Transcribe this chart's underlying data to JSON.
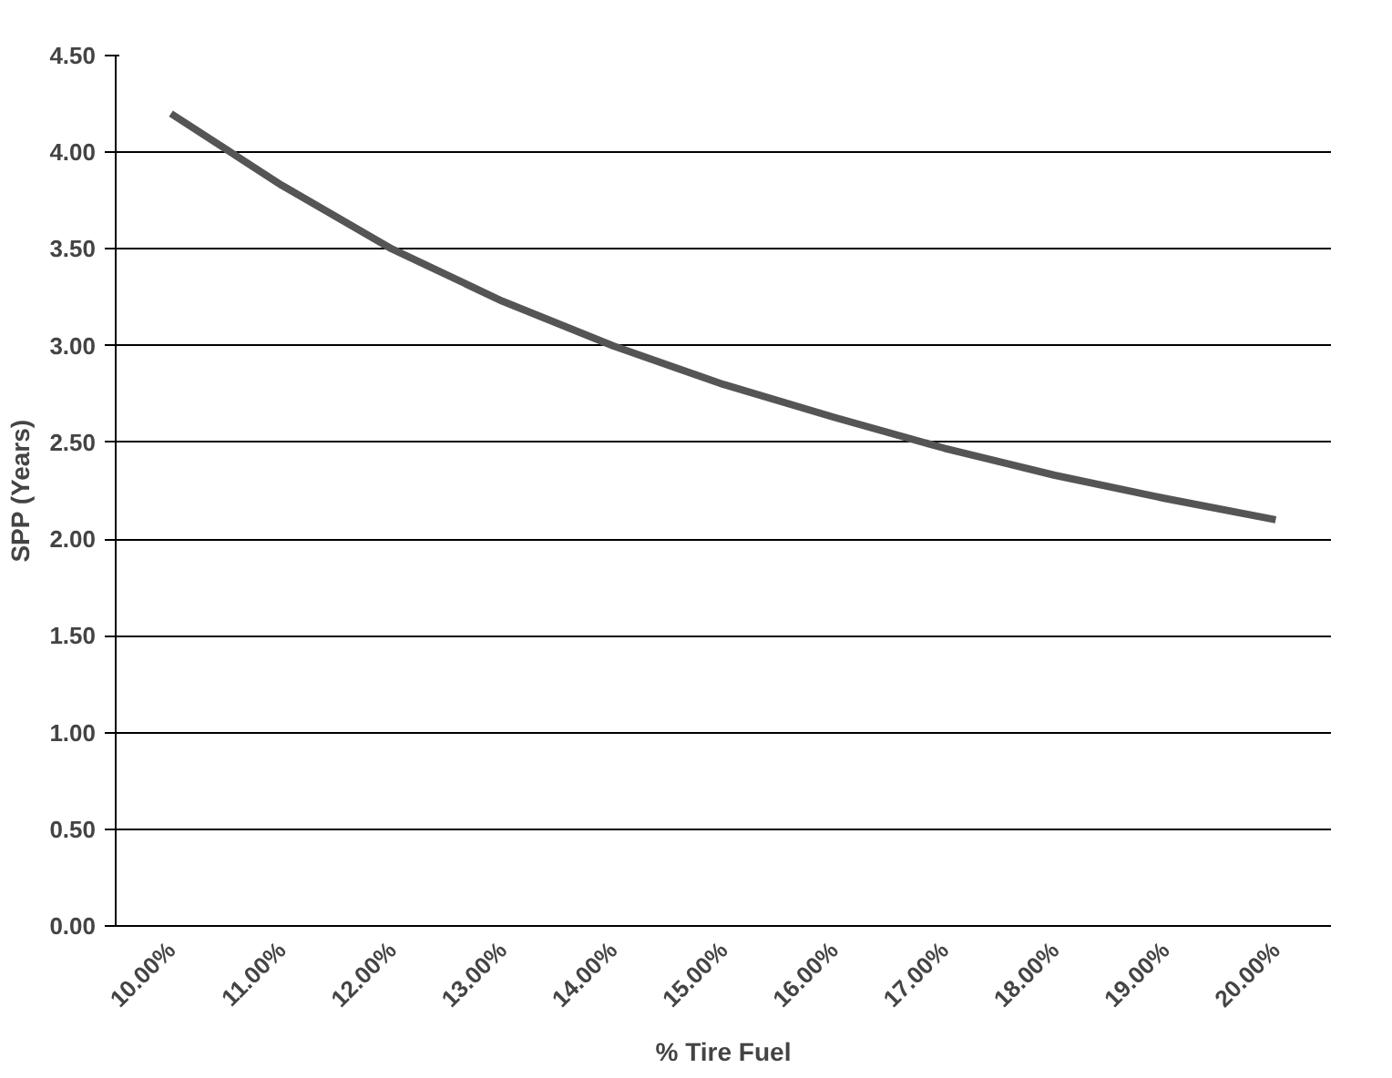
{
  "chart_data": {
    "type": "line",
    "xlabel": "% Tire Fuel",
    "ylabel": "SPP (Years)",
    "categories": [
      "10.00%",
      "11.00%",
      "12.00%",
      "13.00%",
      "14.00%",
      "15.00%",
      "16.00%",
      "17.00%",
      "18.00%",
      "19.00%",
      "20.00%"
    ],
    "series": [
      {
        "color": "#555555",
        "values": [
          4.2,
          3.83,
          3.5,
          3.23,
          3.0,
          2.8,
          2.63,
          2.47,
          2.33,
          2.21,
          2.1
        ]
      }
    ],
    "ylim": [
      0,
      4.5
    ],
    "yticks": [
      {
        "value": 0,
        "label": "0.00"
      },
      {
        "value": 0.5,
        "label": "0.50"
      },
      {
        "value": 1,
        "label": "1.00"
      },
      {
        "value": 1.5,
        "label": "1.50"
      },
      {
        "value": 2,
        "label": "2.00"
      },
      {
        "value": 2.5,
        "label": "2.50"
      },
      {
        "value": 3,
        "label": "3.00"
      },
      {
        "value": 3.5,
        "label": "3.50"
      },
      {
        "value": 4,
        "label": "4.00"
      },
      {
        "value": 4.5,
        "label": "4.50"
      }
    ],
    "grid": "y",
    "marker": "none",
    "line_style": "solid"
  }
}
